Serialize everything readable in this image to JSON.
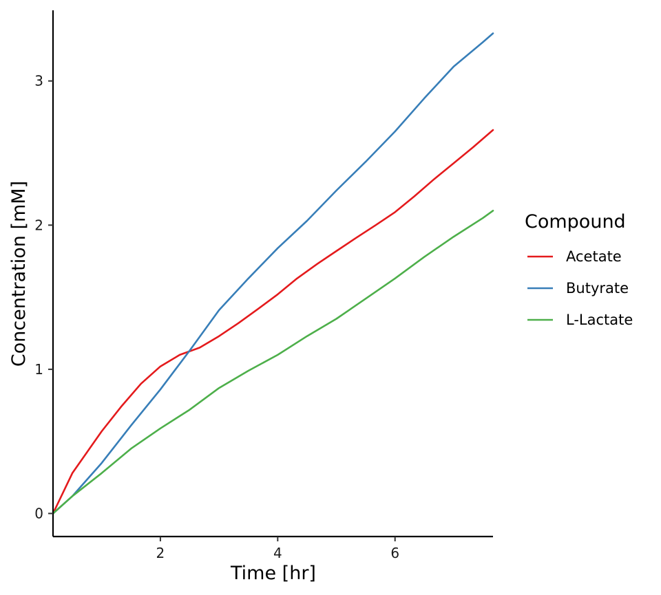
{
  "chart_data": {
    "type": "line",
    "xlabel": "Time [hr]",
    "ylabel": "Concentration [mM]",
    "xlim": [
      0.17,
      7.67
    ],
    "ylim": [
      -0.16,
      3.49
    ],
    "xticks": [
      2,
      4,
      6
    ],
    "yticks": [
      0,
      1,
      2,
      3
    ],
    "grid": false,
    "legend": {
      "title": "Compound",
      "position": "right"
    },
    "series": [
      {
        "name": "Acetate",
        "color": "#e41a1c",
        "x": [
          0.17,
          0.5,
          1.0,
          1.33,
          1.67,
          2.0,
          2.33,
          2.67,
          3.0,
          3.33,
          3.67,
          4.0,
          4.33,
          4.67,
          5.0,
          5.33,
          5.67,
          6.0,
          6.33,
          6.67,
          7.0,
          7.33,
          7.67
        ],
        "y": [
          0.0,
          0.28,
          0.57,
          0.74,
          0.9,
          1.02,
          1.1,
          1.15,
          1.23,
          1.32,
          1.42,
          1.52,
          1.63,
          1.73,
          1.82,
          1.91,
          2.0,
          2.09,
          2.2,
          2.32,
          2.43,
          2.54,
          2.66
        ]
      },
      {
        "name": "Butyrate",
        "color": "#377eb8",
        "x": [
          0.17,
          0.5,
          1.0,
          1.5,
          2.0,
          2.5,
          3.0,
          3.5,
          4.0,
          4.5,
          5.0,
          5.5,
          6.0,
          6.5,
          7.0,
          7.5,
          7.67
        ],
        "y": [
          0.0,
          0.12,
          0.35,
          0.61,
          0.86,
          1.13,
          1.41,
          1.63,
          1.84,
          2.03,
          2.24,
          2.44,
          2.65,
          2.88,
          3.1,
          3.27,
          3.33
        ]
      },
      {
        "name": "L-Lactate",
        "color": "#4daf4a",
        "x": [
          0.17,
          0.5,
          1.0,
          1.5,
          2.0,
          2.5,
          3.0,
          3.5,
          4.0,
          4.5,
          5.0,
          5.5,
          6.0,
          6.5,
          7.0,
          7.5,
          7.67
        ],
        "y": [
          0.0,
          0.12,
          0.28,
          0.45,
          0.59,
          0.72,
          0.87,
          0.99,
          1.1,
          1.23,
          1.35,
          1.49,
          1.63,
          1.78,
          1.92,
          2.05,
          2.1
        ]
      }
    ]
  }
}
